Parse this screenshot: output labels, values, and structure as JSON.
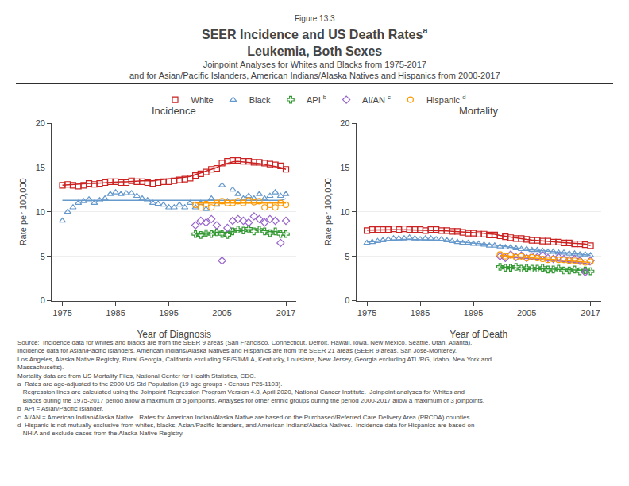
{
  "figure_label": "Figure 13.3",
  "title": [
    "SEER Incidence and US Death Rates",
    "Leukemia, Both Sexes"
  ],
  "title_note": "a",
  "subtitle": [
    "Joinpoint Analyses for Whites and Blacks from 1975-2017",
    "and for Asian/Pacific Islanders, American Indians/Alaska Natives and Hispanics from 2000-2017"
  ],
  "footnotes": [
    "Source:  Incidence data for whites and blacks are from the SEER 9 areas (San Francisco, Connecticut, Detroit, Hawaii, Iowa, New Mexico, Seattle, Utah, Atlanta).",
    "Incidence data for Asian/Pacific Islanders, American Indians/Alaska Natives and Hispanics are from the SEER 21 areas (SEER 9 areas, San Jose-Monterey,",
    "Los Angeles, Alaska Native Registry, Rural Georgia, California excluding SF/SJM/LA, Kentucky, Louisiana, New Jersey, Georgia excluding ATL/RG, Idaho, New York and",
    "Massachusetts).",
    "Mortality data are from US Mortality Files, National Center for Health Statistics, CDC.",
    "a  Rates are age-adjusted to the 2000 US Std Population (19 age groups - Census P25-1103).",
    "   Regression lines are calculated using the Joinpoint Regression Program Version 4.8, April 2020, National Cancer Institute.  Joinpoint analyses for Whites and",
    "   Blacks during the 1975-2017 period allow a maximum of 5 joinpoints. Analyses for other ethnic groups during the period 2000-2017 allow a maximum of 3 joinpoints.",
    "b  API = Asian/Pacific Islander.",
    "c  AI/AN = American Indian/Alaska Native.  Rates for American Indian/Alaska Native are based on the Purchased/Referred Care Delivery Area (PRCDA) counties.",
    "d  Hispanic is not mutually exclusive from whites, blacks, Asian/Pacific Islanders, and American Indians/Alaska Natives.  Incidence data for Hispanics are based on",
    "   NHIA and exclude cases from the Alaska Native Registry."
  ],
  "chart_data": [
    {
      "type": "scatter",
      "title": "Incidence",
      "xlabel": "Year of Diagnosis",
      "ylabel": "Rate per 100,000",
      "xlim": [
        1973,
        2019
      ],
      "xticks": [
        1975,
        1985,
        1995,
        2005,
        2017
      ],
      "ylim": [
        0,
        20
      ],
      "yticks": [
        0,
        5,
        10,
        15,
        20
      ],
      "grid": true,
      "legend": "top",
      "series": [
        {
          "name": "White",
          "color": "#CC2222",
          "marker": "square",
          "x": [
            1975,
            1976,
            1977,
            1978,
            1979,
            1980,
            1981,
            1982,
            1983,
            1984,
            1985,
            1986,
            1987,
            1988,
            1989,
            1990,
            1991,
            1992,
            1993,
            1994,
            1995,
            1996,
            1997,
            1998,
            1999,
            2000,
            2001,
            2002,
            2003,
            2004,
            2005,
            2006,
            2007,
            2008,
            2009,
            2010,
            2011,
            2012,
            2013,
            2014,
            2015,
            2016,
            2017
          ],
          "values": [
            13.0,
            13.1,
            13.0,
            12.9,
            13.0,
            13.2,
            13.1,
            13.2,
            13.3,
            13.4,
            13.4,
            13.3,
            13.3,
            13.5,
            13.4,
            13.4,
            13.3,
            13.2,
            13.3,
            13.4,
            13.4,
            13.5,
            13.6,
            13.7,
            13.8,
            14.1,
            14.3,
            14.5,
            14.8,
            14.9,
            15.5,
            15.7,
            15.8,
            15.8,
            15.7,
            15.7,
            15.6,
            15.6,
            15.5,
            15.4,
            15.3,
            15.2,
            14.8
          ],
          "trend": [
            13.0,
            13.05,
            13.1,
            13.1,
            13.15,
            13.2,
            13.2,
            13.25,
            13.3,
            13.35,
            13.35,
            13.4,
            13.4,
            13.45,
            13.5,
            13.5,
            13.5,
            13.5,
            13.6,
            13.65,
            13.7,
            13.75,
            13.8,
            13.9,
            14.0,
            14.2,
            14.4,
            14.6,
            14.8,
            15.0,
            15.3,
            15.5,
            15.65,
            15.7,
            15.65,
            15.6,
            15.5,
            15.45,
            15.35,
            15.25,
            15.1,
            15.0,
            14.8
          ]
        },
        {
          "name": "Black",
          "color": "#6699CC",
          "marker": "triangle-up",
          "x": [
            1975,
            1976,
            1977,
            1978,
            1979,
            1980,
            1981,
            1982,
            1983,
            1984,
            1985,
            1986,
            1987,
            1988,
            1989,
            1990,
            1991,
            1992,
            1993,
            1994,
            1995,
            1996,
            1997,
            1998,
            1999,
            2000,
            2001,
            2002,
            2003,
            2004,
            2005,
            2006,
            2007,
            2008,
            2009,
            2010,
            2011,
            2012,
            2013,
            2014,
            2015,
            2016,
            2017
          ],
          "values": [
            9.0,
            10.0,
            10.5,
            11.0,
            11.2,
            11.4,
            11.0,
            11.3,
            11.5,
            12.0,
            12.2,
            12.0,
            12.1,
            12.1,
            11.8,
            11.5,
            11.3,
            11.0,
            10.9,
            10.8,
            10.5,
            10.5,
            10.8,
            10.5,
            11.0,
            10.5,
            11.0,
            10.3,
            11.5,
            10.8,
            13.0,
            11.2,
            12.5,
            12.0,
            11.5,
            11.8,
            11.5,
            12.0,
            11.5,
            11.8,
            12.2,
            11.8,
            12.0
          ],
          "trend": [
            11.3,
            11.3,
            11.3,
            11.3,
            11.3,
            11.3,
            11.3,
            11.3,
            11.3,
            11.3,
            11.3,
            11.3,
            11.3,
            11.3,
            11.3,
            11.3,
            11.3,
            11.3,
            11.3,
            11.3,
            11.3,
            11.3,
            11.3,
            11.3,
            11.3,
            11.3,
            11.3,
            11.3,
            11.3,
            11.3,
            11.3,
            11.3,
            11.3,
            11.3,
            11.3,
            11.3,
            11.3,
            11.3,
            11.3,
            11.3,
            11.3,
            11.3,
            11.5
          ]
        },
        {
          "name": "API",
          "note": "b",
          "color": "#339933",
          "marker": "plus",
          "x": [
            2000,
            2001,
            2002,
            2003,
            2004,
            2005,
            2006,
            2007,
            2008,
            2009,
            2010,
            2011,
            2012,
            2013,
            2014,
            2015,
            2016,
            2017
          ],
          "values": [
            7.5,
            7.4,
            7.6,
            7.5,
            7.7,
            7.5,
            7.4,
            7.8,
            8.0,
            7.9,
            8.1,
            7.8,
            8.0,
            7.8,
            7.6,
            7.8,
            7.5,
            7.5
          ],
          "trend": [
            7.5,
            7.5,
            7.6,
            7.6,
            7.7,
            7.7,
            7.7,
            7.8,
            7.9,
            7.9,
            8.0,
            8.0,
            8.0,
            7.9,
            7.8,
            7.8,
            7.7,
            7.6
          ]
        },
        {
          "name": "AI/AN",
          "note": "c",
          "color": "#9966CC",
          "marker": "diamond",
          "x": [
            2000,
            2001,
            2002,
            2003,
            2004,
            2005,
            2006,
            2007,
            2008,
            2009,
            2010,
            2011,
            2012,
            2013,
            2014,
            2015,
            2016,
            2017
          ],
          "values": [
            8.5,
            9.0,
            8.8,
            9.2,
            8.5,
            4.5,
            8.2,
            9.0,
            9.2,
            9.0,
            8.8,
            9.5,
            9.2,
            8.8,
            9.2,
            9.0,
            6.5,
            9.0
          ]
        },
        {
          "name": "Hispanic",
          "note": "d",
          "color": "#FF9900",
          "marker": "circle",
          "x": [
            2000,
            2001,
            2002,
            2003,
            2004,
            2005,
            2006,
            2007,
            2008,
            2009,
            2010,
            2011,
            2012,
            2013,
            2014,
            2015,
            2016,
            2017
          ],
          "values": [
            10.8,
            10.5,
            10.9,
            10.5,
            11.0,
            11.2,
            11.0,
            11.0,
            11.2,
            11.0,
            11.3,
            11.1,
            11.2,
            10.5,
            10.8,
            10.5,
            11.0,
            10.8
          ],
          "trend": [
            11.0,
            11.0,
            11.0,
            11.0,
            11.0,
            11.0,
            11.0,
            11.0,
            11.0,
            11.0,
            11.0,
            11.0,
            11.0,
            11.0,
            11.0,
            11.0,
            11.0,
            11.0
          ]
        }
      ]
    },
    {
      "type": "scatter",
      "title": "Mortality",
      "xlabel": "Year of Death",
      "ylabel": "Rate per 100,000",
      "xlim": [
        1973,
        2019
      ],
      "xticks": [
        1975,
        1985,
        1995,
        2005,
        2017
      ],
      "ylim": [
        0,
        20
      ],
      "yticks": [
        0,
        5,
        10,
        15,
        20
      ],
      "grid": true,
      "series": [
        {
          "name": "White",
          "color": "#CC2222",
          "marker": "square",
          "x": [
            1975,
            1976,
            1977,
            1978,
            1979,
            1980,
            1981,
            1982,
            1983,
            1984,
            1985,
            1986,
            1987,
            1988,
            1989,
            1990,
            1991,
            1992,
            1993,
            1994,
            1995,
            1996,
            1997,
            1998,
            1999,
            2000,
            2001,
            2002,
            2003,
            2004,
            2005,
            2006,
            2007,
            2008,
            2009,
            2010,
            2011,
            2012,
            2013,
            2014,
            2015,
            2016,
            2017
          ],
          "values": [
            7.9,
            8.0,
            8.0,
            8.0,
            8.0,
            8.1,
            8.0,
            8.1,
            8.0,
            8.0,
            8.0,
            7.9,
            8.0,
            8.0,
            7.9,
            7.9,
            7.8,
            7.8,
            7.7,
            7.6,
            7.6,
            7.5,
            7.5,
            7.4,
            7.4,
            7.3,
            7.2,
            7.1,
            7.0,
            7.0,
            6.9,
            6.8,
            6.8,
            6.7,
            6.7,
            6.6,
            6.6,
            6.5,
            6.5,
            6.4,
            6.4,
            6.3,
            6.2
          ],
          "trend": [
            7.95,
            7.97,
            7.98,
            7.99,
            8.0,
            8.0,
            8.0,
            7.99,
            7.98,
            7.97,
            7.96,
            7.94,
            7.92,
            7.9,
            7.88,
            7.85,
            7.82,
            7.79,
            7.75,
            7.71,
            7.67,
            7.63,
            7.58,
            7.53,
            7.48,
            7.35,
            7.25,
            7.15,
            7.05,
            6.98,
            6.9,
            6.83,
            6.77,
            6.72,
            6.67,
            6.62,
            6.58,
            6.54,
            6.5,
            6.46,
            6.42,
            6.38,
            6.2
          ]
        },
        {
          "name": "Black",
          "color": "#6699CC",
          "marker": "triangle-up",
          "x": [
            1975,
            1976,
            1977,
            1978,
            1979,
            1980,
            1981,
            1982,
            1983,
            1984,
            1985,
            1986,
            1987,
            1988,
            1989,
            1990,
            1991,
            1992,
            1993,
            1994,
            1995,
            1996,
            1997,
            1998,
            1999,
            2000,
            2001,
            2002,
            2003,
            2004,
            2005,
            2006,
            2007,
            2008,
            2009,
            2010,
            2011,
            2012,
            2013,
            2014,
            2015,
            2016,
            2017
          ],
          "values": [
            6.5,
            6.6,
            6.7,
            6.8,
            6.9,
            7.0,
            7.0,
            7.0,
            7.1,
            7.0,
            6.9,
            7.0,
            7.0,
            6.9,
            6.9,
            6.8,
            6.7,
            6.6,
            6.5,
            6.5,
            6.4,
            6.4,
            6.3,
            6.2,
            6.2,
            6.1,
            6.0,
            6.0,
            5.9,
            5.8,
            5.8,
            5.7,
            5.7,
            5.6,
            5.5,
            5.5,
            5.4,
            5.4,
            5.3,
            5.3,
            5.2,
            5.2,
            5.1
          ],
          "trend": [
            6.6,
            6.65,
            6.7,
            6.75,
            6.8,
            6.85,
            6.9,
            6.9,
            6.9,
            6.9,
            6.88,
            6.86,
            6.84,
            6.82,
            6.8,
            6.75,
            6.7,
            6.65,
            6.6,
            6.55,
            6.5,
            6.45,
            6.4,
            6.35,
            6.3,
            6.2,
            6.1,
            6.0,
            5.92,
            5.85,
            5.78,
            5.72,
            5.66,
            5.6,
            5.55,
            5.5,
            5.45,
            5.4,
            5.35,
            5.3,
            5.25,
            5.2,
            5.1
          ]
        },
        {
          "name": "API",
          "note": "b",
          "color": "#339933",
          "marker": "plus",
          "x": [
            2000,
            2001,
            2002,
            2003,
            2004,
            2005,
            2006,
            2007,
            2008,
            2009,
            2010,
            2011,
            2012,
            2013,
            2014,
            2015,
            2016,
            2017
          ],
          "values": [
            3.8,
            3.7,
            3.7,
            3.8,
            3.6,
            3.7,
            3.6,
            3.6,
            3.7,
            3.5,
            3.5,
            3.6,
            3.4,
            3.4,
            3.5,
            3.3,
            3.4,
            3.3
          ],
          "trend": [
            3.8,
            3.75,
            3.72,
            3.7,
            3.68,
            3.65,
            3.62,
            3.6,
            3.58,
            3.56,
            3.54,
            3.52,
            3.5,
            3.48,
            3.46,
            3.44,
            3.42,
            3.4
          ]
        },
        {
          "name": "AI/AN",
          "note": "c",
          "color": "#9966CC",
          "marker": "diamond",
          "x": [
            2000,
            2001,
            2002,
            2003,
            2004,
            2005,
            2006,
            2007,
            2008,
            2009,
            2010,
            2011,
            2012,
            2013,
            2014,
            2015,
            2016,
            2017
          ],
          "values": [
            5.0,
            4.8,
            5.2,
            4.9,
            5.1,
            4.8,
            5.0,
            4.9,
            5.1,
            4.8,
            4.7,
            4.9,
            4.7,
            4.6,
            4.7,
            4.5,
            3.2,
            4.5
          ],
          "trend": [
            5.0,
            4.95,
            4.9,
            4.85,
            4.8,
            4.75,
            4.7,
            4.65,
            4.6,
            4.55,
            4.5,
            4.45,
            4.4,
            4.35,
            4.3,
            4.25,
            4.2,
            4.0
          ]
        },
        {
          "name": "Hispanic",
          "note": "d",
          "color": "#FF9900",
          "marker": "circle",
          "x": [
            2000,
            2001,
            2002,
            2003,
            2004,
            2005,
            2006,
            2007,
            2008,
            2009,
            2010,
            2011,
            2012,
            2013,
            2014,
            2015,
            2016,
            2017
          ],
          "values": [
            5.2,
            5.0,
            5.1,
            4.9,
            5.0,
            4.8,
            4.9,
            4.8,
            4.7,
            4.6,
            4.7,
            4.6,
            4.6,
            4.5,
            4.5,
            4.4,
            4.3,
            4.4
          ],
          "trend": [
            5.1,
            5.05,
            5.0,
            4.95,
            4.9,
            4.85,
            4.8,
            4.75,
            4.7,
            4.65,
            4.6,
            4.55,
            4.5,
            4.45,
            4.4,
            4.35,
            4.3,
            4.3
          ]
        }
      ]
    }
  ]
}
